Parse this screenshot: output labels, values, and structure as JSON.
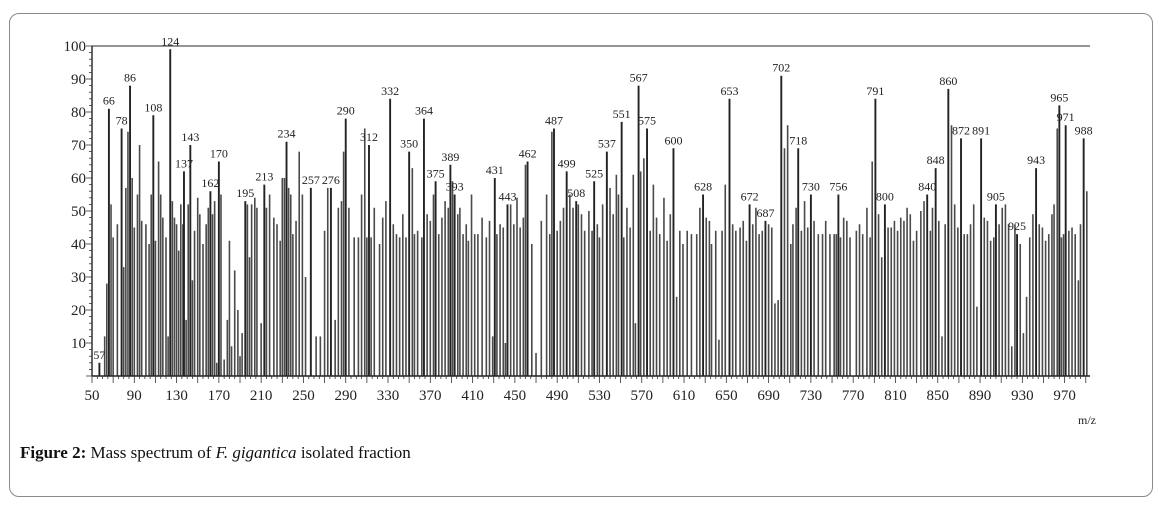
{
  "caption": {
    "label": "Figure 2:",
    "text_before": "Mass spectrum of",
    "species": "F. gigantica",
    "text_after": "isolated fraction"
  },
  "chart_data": {
    "type": "bar",
    "title": "",
    "xlabel": "m/z",
    "ylabel": "",
    "xlim": [
      50,
      994
    ],
    "ylim": [
      0,
      100
    ],
    "x_ticks": [
      50,
      90,
      130,
      170,
      210,
      250,
      290,
      330,
      370,
      410,
      450,
      490,
      530,
      570,
      610,
      650,
      690,
      730,
      770,
      810,
      850,
      890,
      930,
      970
    ],
    "y_ticks": [
      10,
      20,
      30,
      40,
      50,
      60,
      70,
      80,
      90,
      100
    ],
    "grid": false,
    "labeled_peaks": [
      {
        "mz": 57,
        "intensity": 4,
        "label": "57"
      },
      {
        "mz": 66,
        "intensity": 81,
        "label": "66"
      },
      {
        "mz": 78,
        "intensity": 75,
        "label": "78"
      },
      {
        "mz": 86,
        "intensity": 88,
        "label": "86"
      },
      {
        "mz": 108,
        "intensity": 79,
        "label": "108"
      },
      {
        "mz": 124,
        "intensity": 99,
        "label": "124"
      },
      {
        "mz": 137,
        "intensity": 62,
        "label": "137"
      },
      {
        "mz": 143,
        "intensity": 70,
        "label": "143"
      },
      {
        "mz": 162,
        "intensity": 56,
        "label": "162"
      },
      {
        "mz": 170,
        "intensity": 65,
        "label": "170"
      },
      {
        "mz": 195,
        "intensity": 53,
        "label": "195"
      },
      {
        "mz": 213,
        "intensity": 58,
        "label": "213"
      },
      {
        "mz": 234,
        "intensity": 71,
        "label": "234"
      },
      {
        "mz": 257,
        "intensity": 57,
        "label": "257"
      },
      {
        "mz": 276,
        "intensity": 57,
        "label": "276"
      },
      {
        "mz": 290,
        "intensity": 78,
        "label": "290"
      },
      {
        "mz": 312,
        "intensity": 70,
        "label": "312"
      },
      {
        "mz": 332,
        "intensity": 84,
        "label": "332"
      },
      {
        "mz": 350,
        "intensity": 68,
        "label": "350"
      },
      {
        "mz": 364,
        "intensity": 78,
        "label": "364"
      },
      {
        "mz": 375,
        "intensity": 59,
        "label": "375"
      },
      {
        "mz": 389,
        "intensity": 64,
        "label": "389"
      },
      {
        "mz": 393,
        "intensity": 55,
        "label": "393"
      },
      {
        "mz": 431,
        "intensity": 60,
        "label": "431"
      },
      {
        "mz": 443,
        "intensity": 52,
        "label": "443"
      },
      {
        "mz": 462,
        "intensity": 65,
        "label": "462"
      },
      {
        "mz": 487,
        "intensity": 75,
        "label": "487"
      },
      {
        "mz": 499,
        "intensity": 62,
        "label": "499"
      },
      {
        "mz": 508,
        "intensity": 53,
        "label": "508"
      },
      {
        "mz": 525,
        "intensity": 59,
        "label": "525"
      },
      {
        "mz": 537,
        "intensity": 68,
        "label": "537"
      },
      {
        "mz": 551,
        "intensity": 77,
        "label": "551"
      },
      {
        "mz": 567,
        "intensity": 88,
        "label": "567"
      },
      {
        "mz": 575,
        "intensity": 75,
        "label": "575"
      },
      {
        "mz": 600,
        "intensity": 69,
        "label": "600"
      },
      {
        "mz": 628,
        "intensity": 55,
        "label": "628"
      },
      {
        "mz": 653,
        "intensity": 84,
        "label": "653"
      },
      {
        "mz": 672,
        "intensity": 52,
        "label": "672"
      },
      {
        "mz": 687,
        "intensity": 47,
        "label": "687"
      },
      {
        "mz": 702,
        "intensity": 91,
        "label": "702"
      },
      {
        "mz": 718,
        "intensity": 69,
        "label": "718"
      },
      {
        "mz": 730,
        "intensity": 55,
        "label": "730"
      },
      {
        "mz": 756,
        "intensity": 55,
        "label": "756"
      },
      {
        "mz": 791,
        "intensity": 84,
        "label": "791"
      },
      {
        "mz": 800,
        "intensity": 52,
        "label": "800"
      },
      {
        "mz": 840,
        "intensity": 55,
        "label": "840"
      },
      {
        "mz": 848,
        "intensity": 63,
        "label": "848"
      },
      {
        "mz": 860,
        "intensity": 87,
        "label": "860"
      },
      {
        "mz": 872,
        "intensity": 72,
        "label": "872"
      },
      {
        "mz": 891,
        "intensity": 72,
        "label": "891"
      },
      {
        "mz": 905,
        "intensity": 52,
        "label": "905"
      },
      {
        "mz": 925,
        "intensity": 43,
        "label": "925"
      },
      {
        "mz": 943,
        "intensity": 63,
        "label": "943"
      },
      {
        "mz": 965,
        "intensity": 82,
        "label": "965"
      },
      {
        "mz": 971,
        "intensity": 76,
        "label": "971"
      },
      {
        "mz": 988,
        "intensity": 72,
        "label": "988"
      }
    ],
    "unlabeled_peaks": [
      [
        62,
        12
      ],
      [
        64,
        28
      ],
      [
        68,
        52
      ],
      [
        70,
        42
      ],
      [
        74,
        46
      ],
      [
        80,
        33
      ],
      [
        82,
        57
      ],
      [
        84,
        74
      ],
      [
        88,
        60
      ],
      [
        90,
        45
      ],
      [
        93,
        55
      ],
      [
        95,
        70
      ],
      [
        97,
        47
      ],
      [
        101,
        46
      ],
      [
        104,
        40
      ],
      [
        106,
        55
      ],
      [
        110,
        41
      ],
      [
        113,
        65
      ],
      [
        115,
        55
      ],
      [
        117,
        48
      ],
      [
        120,
        42
      ],
      [
        122,
        12
      ],
      [
        126,
        53
      ],
      [
        128,
        48
      ],
      [
        130,
        46
      ],
      [
        132,
        38
      ],
      [
        134,
        52
      ],
      [
        136,
        46
      ],
      [
        139,
        17
      ],
      [
        141,
        52
      ],
      [
        145,
        29
      ],
      [
        147,
        44
      ],
      [
        150,
        54
      ],
      [
        152,
        49
      ],
      [
        155,
        40
      ],
      [
        158,
        46
      ],
      [
        160,
        51
      ],
      [
        164,
        49
      ],
      [
        166,
        53
      ],
      [
        168,
        4
      ],
      [
        172,
        55
      ],
      [
        175,
        5
      ],
      [
        178,
        17
      ],
      [
        180,
        41
      ],
      [
        182,
        9
      ],
      [
        185,
        32
      ],
      [
        188,
        20
      ],
      [
        190,
        6
      ],
      [
        192,
        13
      ],
      [
        197,
        52
      ],
      [
        199,
        36
      ],
      [
        201,
        52
      ],
      [
        204,
        54
      ],
      [
        206,
        51
      ],
      [
        210,
        16
      ],
      [
        215,
        51
      ],
      [
        218,
        55
      ],
      [
        222,
        48
      ],
      [
        225,
        46
      ],
      [
        228,
        41
      ],
      [
        230,
        60
      ],
      [
        232,
        60
      ],
      [
        236,
        57
      ],
      [
        238,
        55
      ],
      [
        240,
        43
      ],
      [
        243,
        47
      ],
      [
        246,
        68
      ],
      [
        249,
        55
      ],
      [
        252,
        30
      ],
      [
        262,
        12
      ],
      [
        266,
        12
      ],
      [
        270,
        44
      ],
      [
        273,
        57
      ],
      [
        280,
        17
      ],
      [
        283,
        51
      ],
      [
        286,
        53
      ],
      [
        288,
        68
      ],
      [
        293,
        51
      ],
      [
        298,
        42
      ],
      [
        302,
        42
      ],
      [
        305,
        55
      ],
      [
        308,
        75
      ],
      [
        310,
        42
      ],
      [
        314,
        42
      ],
      [
        317,
        51
      ],
      [
        322,
        40
      ],
      [
        325,
        48
      ],
      [
        328,
        53
      ],
      [
        335,
        46
      ],
      [
        338,
        43
      ],
      [
        341,
        42
      ],
      [
        344,
        49
      ],
      [
        347,
        42
      ],
      [
        353,
        63
      ],
      [
        355,
        43
      ],
      [
        358,
        44
      ],
      [
        362,
        42
      ],
      [
        367,
        49
      ],
      [
        370,
        47
      ],
      [
        373,
        55
      ],
      [
        378,
        43
      ],
      [
        381,
        48
      ],
      [
        384,
        53
      ],
      [
        387,
        51
      ],
      [
        391,
        59
      ],
      [
        396,
        49
      ],
      [
        398,
        51
      ],
      [
        401,
        43
      ],
      [
        404,
        46
      ],
      [
        406,
        41
      ],
      [
        409,
        55
      ],
      [
        412,
        43
      ],
      [
        415,
        43
      ],
      [
        419,
        48
      ],
      [
        423,
        42
      ],
      [
        426,
        47
      ],
      [
        429,
        12
      ],
      [
        433,
        43
      ],
      [
        436,
        46
      ],
      [
        439,
        45
      ],
      [
        441,
        10
      ],
      [
        446,
        52
      ],
      [
        449,
        46
      ],
      [
        452,
        54
      ],
      [
        455,
        45
      ],
      [
        458,
        48
      ],
      [
        460,
        64
      ],
      [
        466,
        40
      ],
      [
        470,
        7
      ],
      [
        475,
        47
      ],
      [
        480,
        55
      ],
      [
        483,
        43
      ],
      [
        485,
        74
      ],
      [
        490,
        44
      ],
      [
        493,
        47
      ],
      [
        496,
        51
      ],
      [
        502,
        55
      ],
      [
        505,
        51
      ],
      [
        510,
        52
      ],
      [
        513,
        49
      ],
      [
        516,
        44
      ],
      [
        520,
        50
      ],
      [
        523,
        44
      ],
      [
        528,
        46
      ],
      [
        530,
        42
      ],
      [
        533,
        52
      ],
      [
        540,
        57
      ],
      [
        543,
        49
      ],
      [
        546,
        61
      ],
      [
        548,
        55
      ],
      [
        553,
        42
      ],
      [
        556,
        51
      ],
      [
        559,
        45
      ],
      [
        562,
        61
      ],
      [
        564,
        16
      ],
      [
        569,
        62
      ],
      [
        572,
        66
      ],
      [
        578,
        44
      ],
      [
        581,
        58
      ],
      [
        584,
        48
      ],
      [
        587,
        43
      ],
      [
        591,
        54
      ],
      [
        594,
        41
      ],
      [
        597,
        49
      ],
      [
        603,
        24
      ],
      [
        606,
        44
      ],
      [
        609,
        40
      ],
      [
        613,
        44
      ],
      [
        617,
        43
      ],
      [
        622,
        43
      ],
      [
        625,
        51
      ],
      [
        631,
        48
      ],
      [
        634,
        47
      ],
      [
        636,
        40
      ],
      [
        640,
        44
      ],
      [
        643,
        11
      ],
      [
        646,
        44
      ],
      [
        649,
        58
      ],
      [
        656,
        46
      ],
      [
        659,
        44
      ],
      [
        663,
        45
      ],
      [
        666,
        47
      ],
      [
        669,
        41
      ],
      [
        675,
        46
      ],
      [
        678,
        51
      ],
      [
        681,
        43
      ],
      [
        684,
        44
      ],
      [
        690,
        46
      ],
      [
        693,
        45
      ],
      [
        696,
        22
      ],
      [
        699,
        23
      ],
      [
        705,
        69
      ],
      [
        708,
        76
      ],
      [
        711,
        40
      ],
      [
        713,
        46
      ],
      [
        716,
        51
      ],
      [
        721,
        44
      ],
      [
        724,
        53
      ],
      [
        727,
        45
      ],
      [
        733,
        47
      ],
      [
        737,
        43
      ],
      [
        741,
        43
      ],
      [
        744,
        47
      ],
      [
        748,
        43
      ],
      [
        752,
        43
      ],
      [
        754,
        43
      ],
      [
        758,
        42
      ],
      [
        761,
        48
      ],
      [
        764,
        47
      ],
      [
        767,
        42
      ],
      [
        773,
        44
      ],
      [
        776,
        46
      ],
      [
        779,
        43
      ],
      [
        783,
        51
      ],
      [
        786,
        42
      ],
      [
        788,
        65
      ],
      [
        794,
        49
      ],
      [
        797,
        36
      ],
      [
        803,
        45
      ],
      [
        806,
        45
      ],
      [
        809,
        47
      ],
      [
        812,
        44
      ],
      [
        815,
        48
      ],
      [
        818,
        47
      ],
      [
        821,
        51
      ],
      [
        824,
        49
      ],
      [
        827,
        41
      ],
      [
        830,
        44
      ],
      [
        834,
        50
      ],
      [
        837,
        53
      ],
      [
        843,
        44
      ],
      [
        845,
        51
      ],
      [
        851,
        47
      ],
      [
        854,
        12
      ],
      [
        857,
        46
      ],
      [
        863,
        76
      ],
      [
        866,
        52
      ],
      [
        869,
        45
      ],
      [
        875,
        43
      ],
      [
        878,
        43
      ],
      [
        881,
        46
      ],
      [
        884,
        52
      ],
      [
        887,
        21
      ],
      [
        894,
        48
      ],
      [
        897,
        47
      ],
      [
        900,
        41
      ],
      [
        903,
        42
      ],
      [
        908,
        46
      ],
      [
        911,
        51
      ],
      [
        914,
        52
      ],
      [
        917,
        46
      ],
      [
        920,
        9
      ],
      [
        923,
        46
      ],
      [
        928,
        40
      ],
      [
        931,
        13
      ],
      [
        934,
        24
      ],
      [
        937,
        42
      ],
      [
        940,
        49
      ],
      [
        946,
        46
      ],
      [
        949,
        45
      ],
      [
        952,
        41
      ],
      [
        955,
        43
      ],
      [
        958,
        49
      ],
      [
        960,
        52
      ],
      [
        963,
        75
      ],
      [
        967,
        42
      ],
      [
        969,
        43
      ],
      [
        974,
        44
      ],
      [
        977,
        45
      ],
      [
        980,
        43
      ],
      [
        983,
        29
      ],
      [
        985,
        46
      ],
      [
        991,
        56
      ]
    ]
  }
}
